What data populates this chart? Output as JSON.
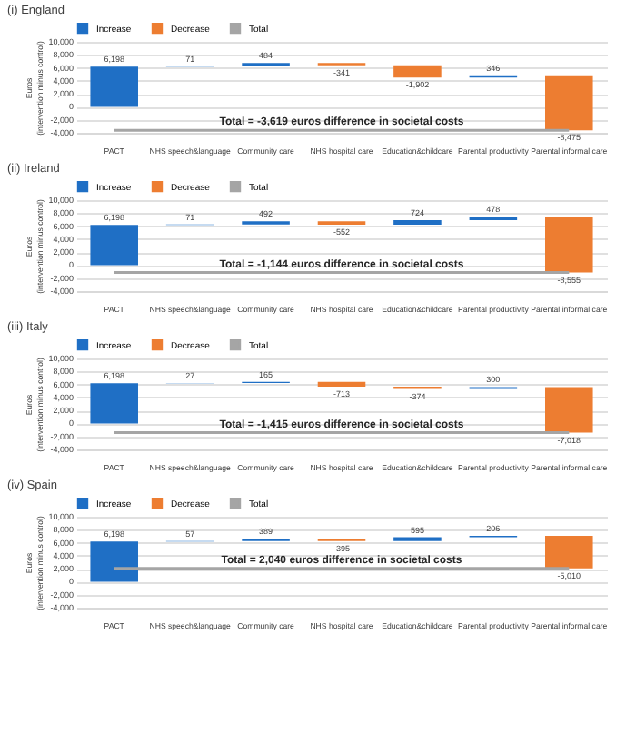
{
  "chart_data": [
    {
      "type": "bar",
      "title": "(i) England",
      "ylabel": "Euros (intervention minus control)",
      "categories": [
        "PACT",
        "NHS speech&language",
        "Community care",
        "NHS hospital care",
        "Education&childcare",
        "Parental productivity",
        "Parental informal care"
      ],
      "series": [
        {
          "name": "Increase",
          "color": "#1f6fc5",
          "base": [
            0,
            6198,
            6269,
            null,
            null,
            4510,
            null
          ],
          "values": [
            6198,
            71,
            484,
            null,
            null,
            346,
            null
          ],
          "value_labels": [
            "6,198",
            "71",
            "484",
            null,
            null,
            "346",
            null
          ]
        },
        {
          "name": "Decrease",
          "color": "#ed7d31",
          "base": [
            null,
            null,
            null,
            6753,
            6412,
            null,
            4856
          ],
          "values": [
            null,
            null,
            null,
            -341,
            -1902,
            null,
            -8475
          ],
          "value_labels": [
            null,
            null,
            null,
            "-341",
            "-1,902",
            null,
            "-8,475"
          ]
        },
        {
          "name": "Total",
          "type": "line",
          "color": "#a5a5a5",
          "values": [
            -3619,
            -3619,
            -3619,
            -3619,
            -3619,
            -3619,
            -3619
          ]
        }
      ],
      "annotations": [
        "Total = -3,619 euros difference in societal costs"
      ],
      "ylim": [
        -4000,
        10000
      ],
      "yticks": [
        {
          "value": -4000,
          "label": "-4,000"
        },
        {
          "value": -2000,
          "label": "-2,000"
        },
        {
          "value": 0,
          "label": "0"
        },
        {
          "value": 2000,
          "label": "2,000"
        },
        {
          "value": 4000,
          "label": "4,000"
        },
        {
          "value": 6000,
          "label": "6,000"
        },
        {
          "value": 8000,
          "label": "8,000"
        },
        {
          "value": 10000,
          "label": "10,000"
        }
      ],
      "grid": "y",
      "legend": "top"
    },
    {
      "type": "bar",
      "title": "(ii) Ireland",
      "ylabel": "Euros (intervention minus control)",
      "categories": [
        "PACT",
        "NHS speech&language",
        "Community care",
        "NHS hospital care",
        "Education&childcare",
        "Parental productivity",
        "Parental informal care"
      ],
      "series": [
        {
          "name": "Increase",
          "color": "#1f6fc5",
          "base": [
            0,
            6198,
            6269,
            null,
            6209,
            6933,
            null
          ],
          "values": [
            6198,
            71,
            492,
            null,
            724,
            478,
            null
          ],
          "value_labels": [
            "6,198",
            "71",
            "492",
            null,
            "724",
            "478",
            null
          ]
        },
        {
          "name": "Decrease",
          "color": "#ed7d31",
          "base": [
            null,
            null,
            null,
            6761,
            null,
            null,
            7411
          ],
          "values": [
            null,
            null,
            null,
            -552,
            null,
            null,
            -8555
          ],
          "value_labels": [
            null,
            null,
            null,
            "-552",
            null,
            null,
            "-8,555"
          ]
        },
        {
          "name": "Total",
          "type": "line",
          "color": "#a5a5a5",
          "values": [
            -1144,
            -1144,
            -1144,
            -1144,
            -1144,
            -1144,
            -1144
          ]
        }
      ],
      "annotations": [
        "Total = -1,144 euros difference in societal costs"
      ],
      "ylim": [
        -4000,
        10000
      ],
      "yticks": [
        {
          "value": -4000,
          "label": "-4,000"
        },
        {
          "value": -2000,
          "label": "-2,000"
        },
        {
          "value": 0,
          "label": "0"
        },
        {
          "value": 2000,
          "label": "2,000"
        },
        {
          "value": 4000,
          "label": "4,000"
        },
        {
          "value": 6000,
          "label": "6,000"
        },
        {
          "value": 8000,
          "label": "8,000"
        },
        {
          "value": 10000,
          "label": "10,000"
        }
      ],
      "grid": "y",
      "legend": "top"
    },
    {
      "type": "bar",
      "title": "(iii) Italy",
      "ylabel": "Euros (intervention minus control)",
      "categories": [
        "PACT",
        "NHS speech&language",
        "Community care",
        "NHS hospital care",
        "Education&childcare",
        "Parental productivity",
        "Parental informal care"
      ],
      "series": [
        {
          "name": "Increase",
          "color": "#1f6fc5",
          "base": [
            0,
            6198,
            6225,
            null,
            null,
            5303,
            null
          ],
          "values": [
            6198,
            27,
            165,
            null,
            null,
            300,
            null
          ],
          "value_labels": [
            "6,198",
            "27",
            "165",
            null,
            null,
            "300",
            null
          ]
        },
        {
          "name": "Decrease",
          "color": "#ed7d31",
          "base": [
            null,
            null,
            null,
            6390,
            5677,
            null,
            5603
          ],
          "values": [
            null,
            null,
            null,
            -713,
            -374,
            null,
            -7018
          ],
          "value_labels": [
            null,
            null,
            null,
            "-713",
            "-374",
            null,
            "-7,018"
          ]
        },
        {
          "name": "Total",
          "type": "line",
          "color": "#a5a5a5",
          "values": [
            -1415,
            -1415,
            -1415,
            -1415,
            -1415,
            -1415,
            -1415
          ]
        }
      ],
      "annotations": [
        "Total = -1,415 euros difference in societal costs"
      ],
      "ylim": [
        -4000,
        10000
      ],
      "yticks": [
        {
          "value": -4000,
          "label": "-4,000"
        },
        {
          "value": -2000,
          "label": "-2,000"
        },
        {
          "value": 0,
          "label": "0"
        },
        {
          "value": 2000,
          "label": "2,000"
        },
        {
          "value": 4000,
          "label": "4,000"
        },
        {
          "value": 6000,
          "label": "6,000"
        },
        {
          "value": 8000,
          "label": "8,000"
        },
        {
          "value": 10000,
          "label": "10,000"
        }
      ],
      "grid": "y",
      "legend": "top"
    },
    {
      "type": "bar",
      "title": "(iv) Spain",
      "ylabel": "Euros (intervention minus control)",
      "categories": [
        "PACT",
        "NHS speech&language",
        "Community care",
        "NHS hospital care",
        "Education&childcare",
        "Parental productivity",
        "Parental informal care"
      ],
      "series": [
        {
          "name": "Increase",
          "color": "#1f6fc5",
          "base": [
            0,
            6198,
            6255,
            null,
            6249,
            6844,
            null
          ],
          "values": [
            6198,
            57,
            389,
            null,
            595,
            206,
            null
          ],
          "value_labels": [
            "6,198",
            "57",
            "389",
            null,
            "595",
            "206",
            null
          ]
        },
        {
          "name": "Decrease",
          "color": "#ed7d31",
          "base": [
            null,
            null,
            null,
            6644,
            null,
            null,
            7050
          ],
          "values": [
            null,
            null,
            null,
            -395,
            null,
            null,
            -5010
          ],
          "value_labels": [
            null,
            null,
            null,
            "-395",
            null,
            null,
            "-5,010"
          ]
        },
        {
          "name": "Total",
          "type": "line",
          "color": "#a5a5a5",
          "values": [
            2040,
            2040,
            2040,
            2040,
            2040,
            2040,
            2040
          ]
        }
      ],
      "annotations": [
        "Total = 2,040 euros difference in societal costs"
      ],
      "ylim": [
        -4000,
        10000
      ],
      "yticks": [
        {
          "value": -4000,
          "label": "-4,000"
        },
        {
          "value": -2000,
          "label": "-2,000"
        },
        {
          "value": 0,
          "label": "0"
        },
        {
          "value": 2000,
          "label": "2,000"
        },
        {
          "value": 4000,
          "label": "4,000"
        },
        {
          "value": 6000,
          "label": "6,000"
        },
        {
          "value": 8000,
          "label": "8,000"
        },
        {
          "value": 10000,
          "label": "10,000"
        }
      ],
      "grid": "y",
      "legend": "top"
    }
  ]
}
